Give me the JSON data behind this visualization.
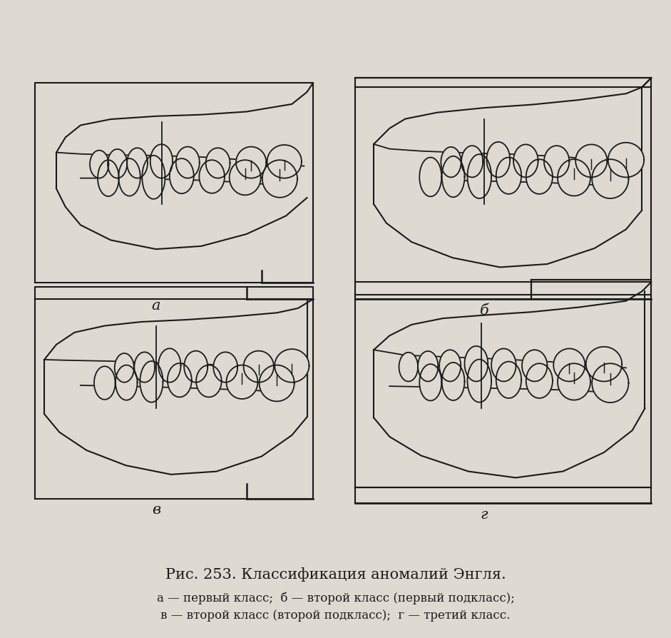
{
  "bg_color": "#dedad2",
  "title": "Рис. 253. Классификация аномалий Энгля.",
  "caption_line1": "а — первый класс;  б — второй класс (первый подкласс);",
  "caption_line2": "в — второй класс (второй подкласс);  г — третий класс.",
  "title_fontsize": 15,
  "caption_fontsize": 12,
  "panel_labels": [
    "а",
    "б",
    "в",
    "г"
  ],
  "line_color": "#1a1a1a",
  "lw": 1.3
}
